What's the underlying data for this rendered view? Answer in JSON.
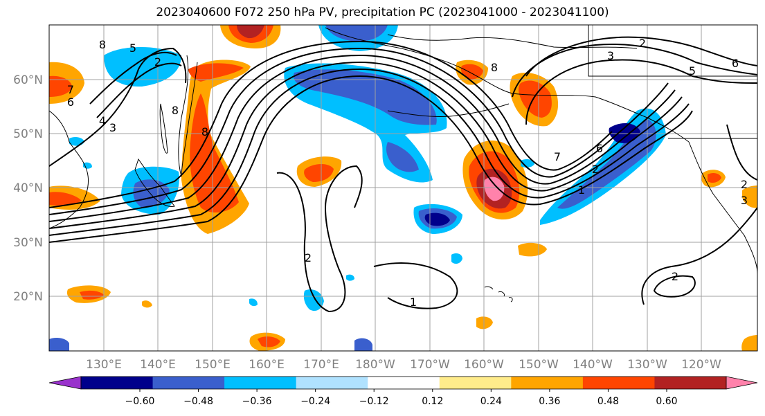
{
  "title": "2023040600 F072 250 hPa PV, precipitation PC (2023041000 - 2023041100)",
  "lat_labels": [
    "60°N",
    "50°N",
    "40°N",
    "30°N",
    "20°N"
  ],
  "lon_labels": [
    "130°E",
    "140°E",
    "150°E",
    "160°E",
    "170°E",
    "180°W",
    "170°W",
    "160°W",
    "150°W",
    "140°W",
    "130°W",
    "120°W"
  ],
  "colorbar": {
    "ticks": [
      "−0.60",
      "−0.48",
      "−0.36",
      "−0.24",
      "−0.12",
      "0.12",
      "0.24",
      "0.36",
      "0.48",
      "0.60"
    ],
    "colors": [
      "#9932cc",
      "#00008b",
      "#3a5fcd",
      "#00bfff",
      "#b0e2ff",
      "#ffffff",
      "#ffec8b",
      "#ffa500",
      "#ff4500",
      "#b22222",
      "#ff82ab"
    ]
  },
  "contour_labels": [
    "8",
    "5",
    "2",
    "7",
    "6",
    "4",
    "3",
    "8",
    "3",
    "2",
    "5",
    "6",
    "8",
    "7",
    "6",
    "2",
    "1",
    "8",
    "2",
    "1",
    "2",
    "3",
    "2"
  ],
  "palette": {
    "grid": "#a0a0a0",
    "coast": "#000000"
  }
}
